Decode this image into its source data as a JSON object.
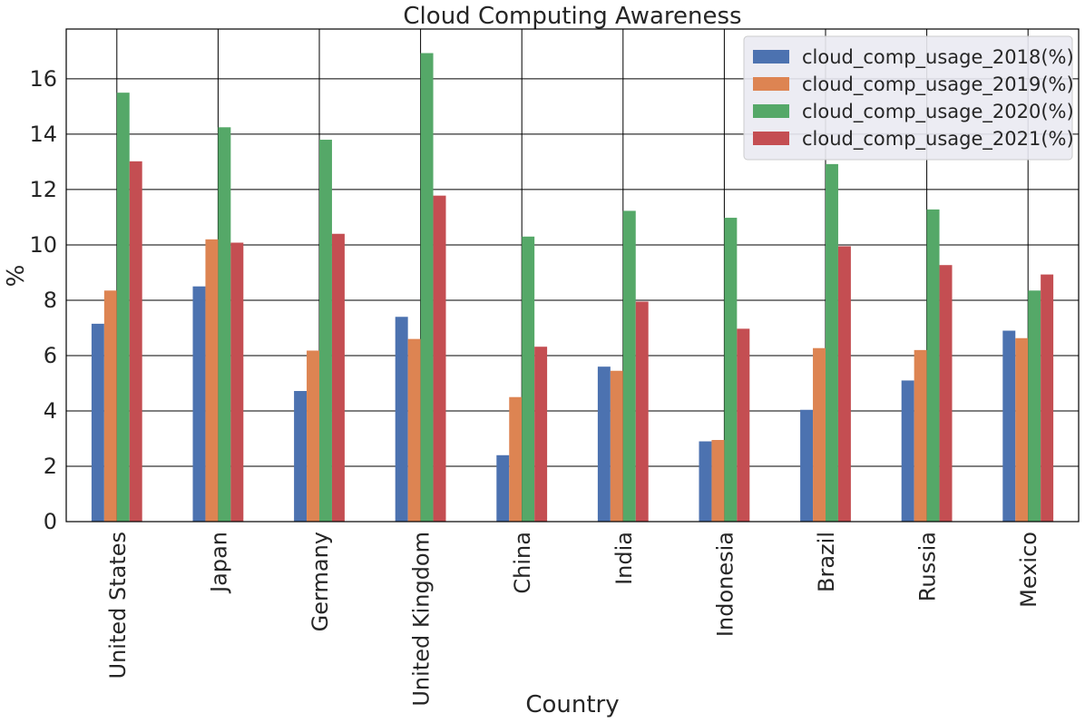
{
  "chart_data": {
    "type": "bar",
    "title": "Cloud Computing Awareness",
    "xlabel": "Country",
    "ylabel": "%",
    "categories": [
      "United States",
      "Japan",
      "Germany",
      "United Kingdom",
      "China",
      "India",
      "Indonesia",
      "Brazil",
      "Russia",
      "Mexico"
    ],
    "series": [
      {
        "name": "cloud_comp_usage_2018(%)",
        "color": "#4c72b0",
        "values": [
          7.15,
          8.5,
          4.72,
          7.4,
          2.4,
          5.6,
          2.9,
          4.04,
          5.1,
          6.9
        ]
      },
      {
        "name": "cloud_comp_usage_2019(%)",
        "color": "#dd8452",
        "values": [
          8.35,
          10.2,
          6.18,
          6.6,
          4.5,
          5.45,
          2.95,
          6.27,
          6.2,
          6.63
        ]
      },
      {
        "name": "cloud_comp_usage_2020(%)",
        "color": "#55a868",
        "values": [
          15.5,
          14.25,
          13.8,
          16.93,
          10.3,
          11.23,
          10.98,
          12.92,
          11.28,
          8.35
        ]
      },
      {
        "name": "cloud_comp_usage_2021(%)",
        "color": "#c44e52",
        "values": [
          13.02,
          10.08,
          10.4,
          11.78,
          6.32,
          7.95,
          6.97,
          9.95,
          9.27,
          8.93
        ]
      }
    ],
    "yticks": [
      0,
      2,
      4,
      6,
      8,
      10,
      12,
      14,
      16
    ],
    "ylim": [
      0,
      17.8
    ],
    "grid": true,
    "legend_position": "top-right"
  }
}
